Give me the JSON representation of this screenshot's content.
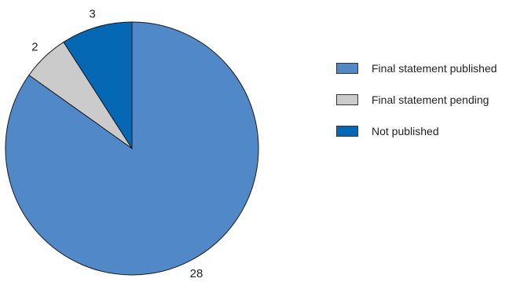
{
  "chart_data": {
    "type": "pie",
    "slices": [
      {
        "name": "Final statement published",
        "value": 28,
        "color": "#5188c8"
      },
      {
        "name": "Final statement pending",
        "value": 2,
        "color": "#cbcbcb"
      },
      {
        "name": "Not published",
        "value": 3,
        "color": "#0468b5"
      }
    ],
    "start_angle": "12 o'clock",
    "direction": "clockwise",
    "legend_position": "right",
    "slice_labels": [
      "28",
      "2",
      "3"
    ]
  }
}
